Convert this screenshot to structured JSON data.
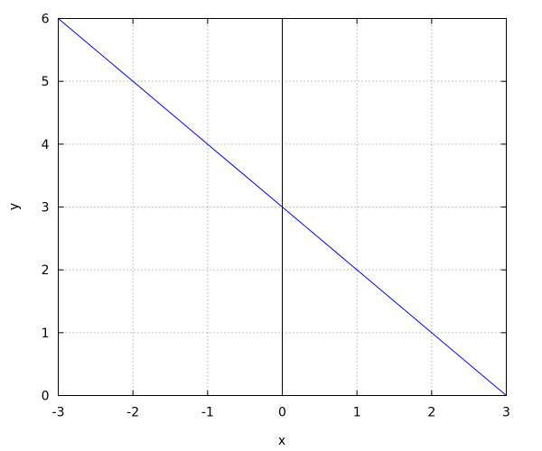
{
  "chart_data": {
    "type": "line",
    "title": "",
    "xlabel": "x",
    "ylabel": "y",
    "xlim": [
      -3,
      3
    ],
    "ylim": [
      0,
      6
    ],
    "xticks": [
      "-3",
      "-2",
      "-1",
      "0",
      "1",
      "2",
      "3"
    ],
    "yticks": [
      "0",
      "1",
      "2",
      "3",
      "4",
      "5",
      "6"
    ],
    "grid": true,
    "zero_axis_x": 0,
    "series": [
      {
        "x": [
          -3,
          -2,
          -1,
          0,
          1,
          2,
          3
        ],
        "y": [
          6,
          5,
          4,
          3,
          2,
          1,
          0
        ],
        "color": "#0000ff"
      }
    ]
  }
}
